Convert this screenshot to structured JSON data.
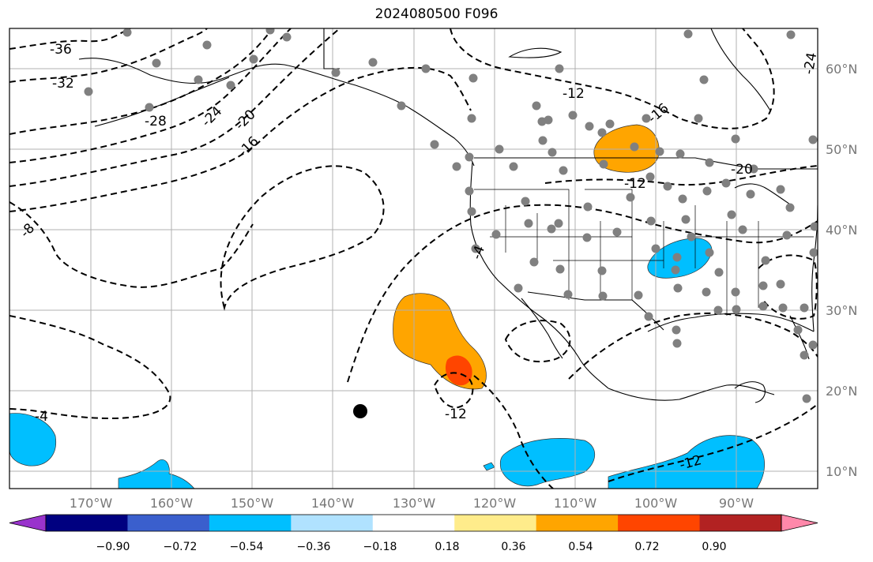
{
  "title": "2024080500 F096",
  "lon_labels": [
    "170°W",
    "160°W",
    "150°W",
    "140°W",
    "130°W",
    "120°W",
    "110°W",
    "100°W",
    "90°W"
  ],
  "lat_labels": [
    "60°N",
    "50°N",
    "40°N",
    "30°N",
    "20°N",
    "10°N"
  ],
  "contour_labels": [
    "-36",
    "-32",
    "-28",
    "-24",
    "-20",
    "-16",
    "-12",
    "-16",
    "-12",
    "-20",
    "-24",
    "-8",
    "-4",
    "-4",
    "-12",
    "-12"
  ],
  "colorbar": {
    "colors": [
      "#9933cc",
      "#000080",
      "#3a5fcd",
      "#00bfff",
      "#b0e2ff",
      "#ffffff",
      "#ffec8b",
      "#ffa500",
      "#ff4500",
      "#b22222",
      "#ff88aa"
    ],
    "tick_labels": [
      "−0.90",
      "−0.72",
      "−0.54",
      "−0.36",
      "−0.18",
      "0.18",
      "0.36",
      "0.54",
      "0.72",
      "0.90"
    ]
  },
  "colors": {
    "orange": "#ffa500",
    "red": "#ff4500",
    "blue": "#00bfff",
    "station": "#808080",
    "marker": "#000000"
  }
}
